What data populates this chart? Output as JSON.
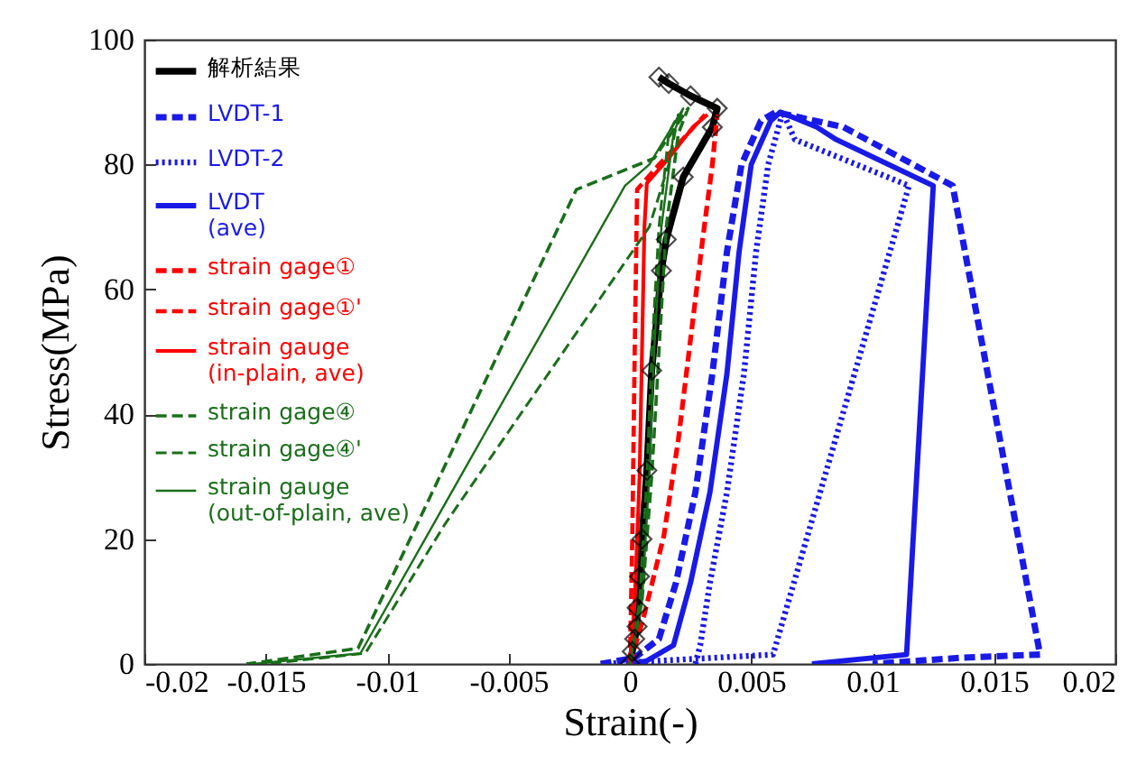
{
  "chart_data": {
    "type": "line",
    "xlabel": "Strain(-)",
    "ylabel": "Stress(MPa)",
    "xlim": [
      -0.02,
      0.02
    ],
    "xticks": [
      -0.02,
      -0.015,
      -0.01,
      -0.005,
      0,
      0.005,
      0.01,
      0.015,
      0.02
    ],
    "ylim": [
      0,
      100
    ],
    "yticks": [
      0,
      20,
      40,
      60,
      80,
      100
    ],
    "grid": false,
    "legend": "top left",
    "series": [
      {
        "name": "解析結果",
        "color": "#000000",
        "marker": "diamond",
        "line_style": "solid",
        "x": [
          0,
          0.0001,
          0.0002,
          0.0003,
          0.0003,
          0.0004,
          0.0005,
          0.0007,
          0.0009,
          0.0013,
          0.0015,
          0.0022,
          0.0034,
          0.0036,
          0.0025,
          0.0016,
          0.0012
        ],
        "values": [
          0,
          2,
          4,
          6,
          9,
          14,
          20,
          31,
          47,
          63,
          68,
          78,
          86,
          89,
          91,
          93,
          94
        ]
      },
      {
        "name": "LVDT-1",
        "color": "#1a1ae6",
        "marker": "none",
        "line_style": "dashed",
        "x": [
          -0.0012,
          0.0002,
          0.0012,
          0.0019,
          0.0027,
          0.0034,
          0.004,
          0.0046,
          0.0054,
          0.006,
          0.0088,
          0.0133,
          0.0169,
          0.0137,
          0.01
        ],
        "values": [
          0,
          1,
          4,
          13,
          27.5,
          46.5,
          66,
          80,
          87,
          88.4,
          86,
          76.6,
          1.5,
          1,
          0
        ]
      },
      {
        "name": "LVDT-2",
        "color": "#1a1ae6",
        "marker": "none",
        "line_style": "dotted",
        "x": [
          0.0027,
          0.0029,
          0.0033,
          0.004,
          0.0047,
          0.0052,
          0.0057,
          0.0063,
          0.0068,
          0.0115,
          0.0059,
          -0.0012
        ],
        "values": [
          0,
          3,
          13,
          27.5,
          46.5,
          66,
          80,
          88.4,
          84,
          76.6,
          1.5,
          0
        ]
      },
      {
        "name": "LVDT\n(ave)",
        "color": "#1a1ae6",
        "marker": "none",
        "line_style": "solid",
        "x": [
          0,
          0.0007,
          0.0018,
          0.0025,
          0.0033,
          0.004,
          0.0045,
          0.005,
          0.0058,
          0.0062,
          0.0077,
          0.0085,
          0.0125,
          0.0114,
          0.0075
        ],
        "values": [
          0,
          0.5,
          3,
          13,
          27.5,
          46.5,
          66,
          80,
          87,
          88.4,
          86,
          84,
          76.6,
          1.5,
          0
        ]
      },
      {
        "name": "strain gage①",
        "color": "#ff0000",
        "marker": "none",
        "line_style": "dashed",
        "x": [
          0,
          0.0006,
          0.0014,
          0.002,
          0.0025,
          0.003,
          0.0034,
          0.0036
        ],
        "values": [
          0,
          8,
          20.5,
          36,
          52,
          68,
          80,
          88
        ]
      },
      {
        "name": "strain gage①'",
        "color": "#ff0000",
        "marker": "none",
        "line_style": "dashed",
        "x": [
          0,
          0.0001,
          0.0002,
          0.0003,
          0.0012,
          0.0024,
          0.0031
        ],
        "values": [
          0,
          20,
          50,
          76,
          80,
          85,
          88
        ]
      },
      {
        "name": "strain gauge\n(in-plain, ave)",
        "color": "#ff0000",
        "marker": "none",
        "line_style": "solid",
        "x": [
          0,
          0.0002,
          0.0004,
          0.0005,
          0.0006,
          0.0007,
          0.0016,
          0.0026,
          0.0032
        ],
        "values": [
          0,
          10,
          30,
          50,
          70,
          77,
          81,
          86,
          88
        ]
      },
      {
        "name": "strain gage④",
        "color": "#1a6e1a",
        "marker": "none",
        "line_style": "dashed",
        "x": [
          0,
          0.0005,
          0.0009,
          0.0012,
          0.0015,
          0.002,
          0.0024,
          0.001,
          -0.0022,
          -0.0112,
          -0.0158
        ],
        "values": [
          0,
          10,
          30,
          50,
          70,
          85,
          89,
          81,
          76,
          2.5,
          0
        ]
      },
      {
        "name": "strain gage④'",
        "color": "#1a6e1a",
        "marker": "none",
        "line_style": "dashed",
        "x": [
          0,
          0.0004,
          0.0007,
          0.0009,
          0.0012,
          0.0016,
          0.002,
          0.0016,
          0.0008,
          -0.0076,
          -0.0109,
          -0.015
        ],
        "values": [
          0,
          10,
          30,
          50,
          70,
          85,
          88,
          80,
          70,
          22.5,
          1.7,
          0
        ]
      },
      {
        "name": "strain gauge\n(out-of-plain, ave)",
        "color": "#1a6e1a",
        "marker": "none",
        "line_style": "solid",
        "x": [
          0,
          0.0005,
          0.0008,
          0.001,
          0.0013,
          0.0018,
          0.0022,
          0.0008,
          -0.0002,
          -0.0111,
          -0.0155
        ],
        "values": [
          0,
          10,
          30,
          50,
          70,
          85,
          89,
          80,
          76.6,
          1.7,
          0
        ]
      }
    ]
  }
}
